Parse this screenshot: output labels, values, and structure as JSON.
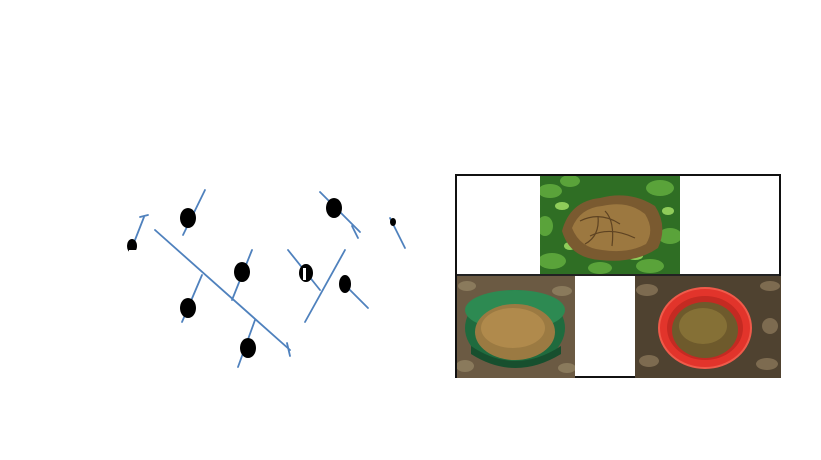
{
  "figure": {
    "diagram_icon": "branching-network-diagram",
    "photos": [
      {
        "icon": "dung-on-vegetation-photo"
      },
      {
        "icon": "dung-in-green-basin-photo"
      },
      {
        "icon": "dung-in-red-basin-photo"
      }
    ],
    "colors": {
      "branch": "#4f81bd",
      "node": "#000000",
      "panel_border": "#111111",
      "foliage": "#3f8a2c",
      "dung": "#8a6a3a",
      "green_basin": "#1f6b3e",
      "red_basin": "#e2342b",
      "leaf_litter": "#5a4a35"
    }
  }
}
